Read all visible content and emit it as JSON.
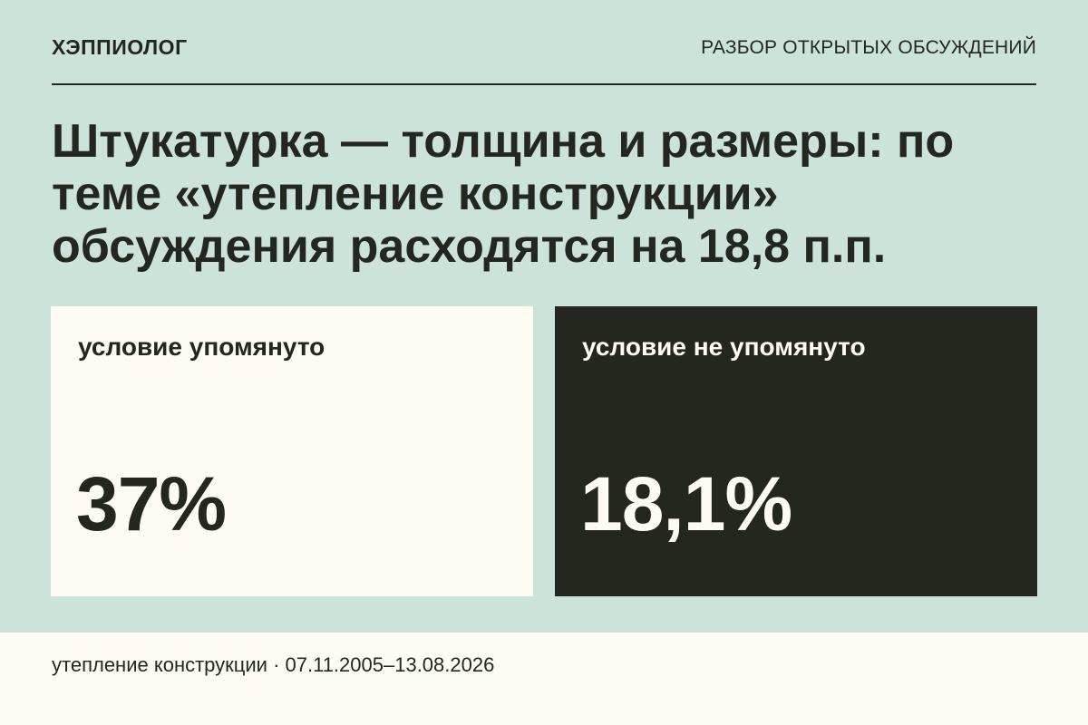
{
  "header": {
    "brand": "ХЭППИОЛОГ",
    "section": "РАЗБОР ОТКРЫТЫХ ОБСУЖДЕНИЙ"
  },
  "headline": "Штукатурка — толщина и размеры: по теме «утепление конструкции» обсуждения расходятся на 18,8 п.п.",
  "cards": [
    {
      "label": "условие упомянуто",
      "value": "37%"
    },
    {
      "label": "условие не упомянуто",
      "value": "18,1%"
    }
  ],
  "footer": {
    "caption": "утепление конструкции · 07.11.2005–13.08.2026"
  },
  "colors": {
    "background": "#cce3d9",
    "dark": "#232720",
    "light": "#fdfbf4"
  }
}
